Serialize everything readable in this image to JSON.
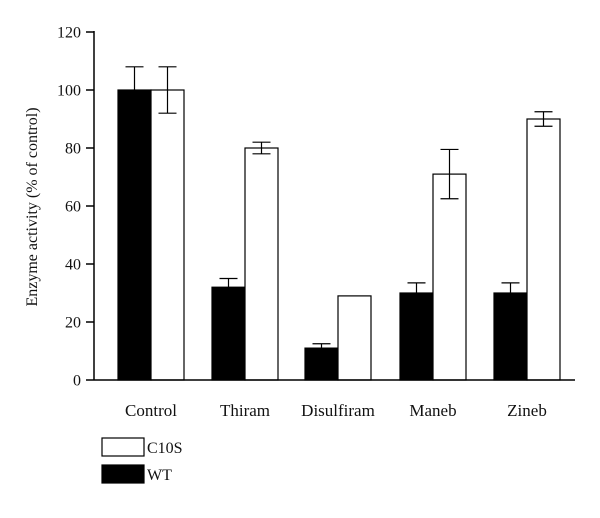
{
  "chart_data": {
    "type": "bar",
    "title": "",
    "xlabel": "",
    "ylabel": "Enzyme activity (% of control)",
    "ylim": [
      0,
      120
    ],
    "yticks": [
      0,
      20,
      40,
      60,
      80,
      100,
      120
    ],
    "categories": [
      "Control",
      "Thiram",
      "Disulfiram",
      "Maneb",
      "Zineb"
    ],
    "series": [
      {
        "name": "WT",
        "color": "#000000",
        "values": [
          100,
          32,
          11,
          30,
          30
        ],
        "errors": [
          8,
          3,
          1.5,
          3.5,
          3.5
        ]
      },
      {
        "name": "C10S",
        "color": "#ffffff",
        "values": [
          100,
          80,
          29,
          71,
          90
        ],
        "errors": [
          8,
          2,
          0,
          8.5,
          2.5
        ]
      }
    ],
    "legend": {
      "position": "bottom-left",
      "order": [
        "C10S",
        "WT"
      ]
    }
  }
}
